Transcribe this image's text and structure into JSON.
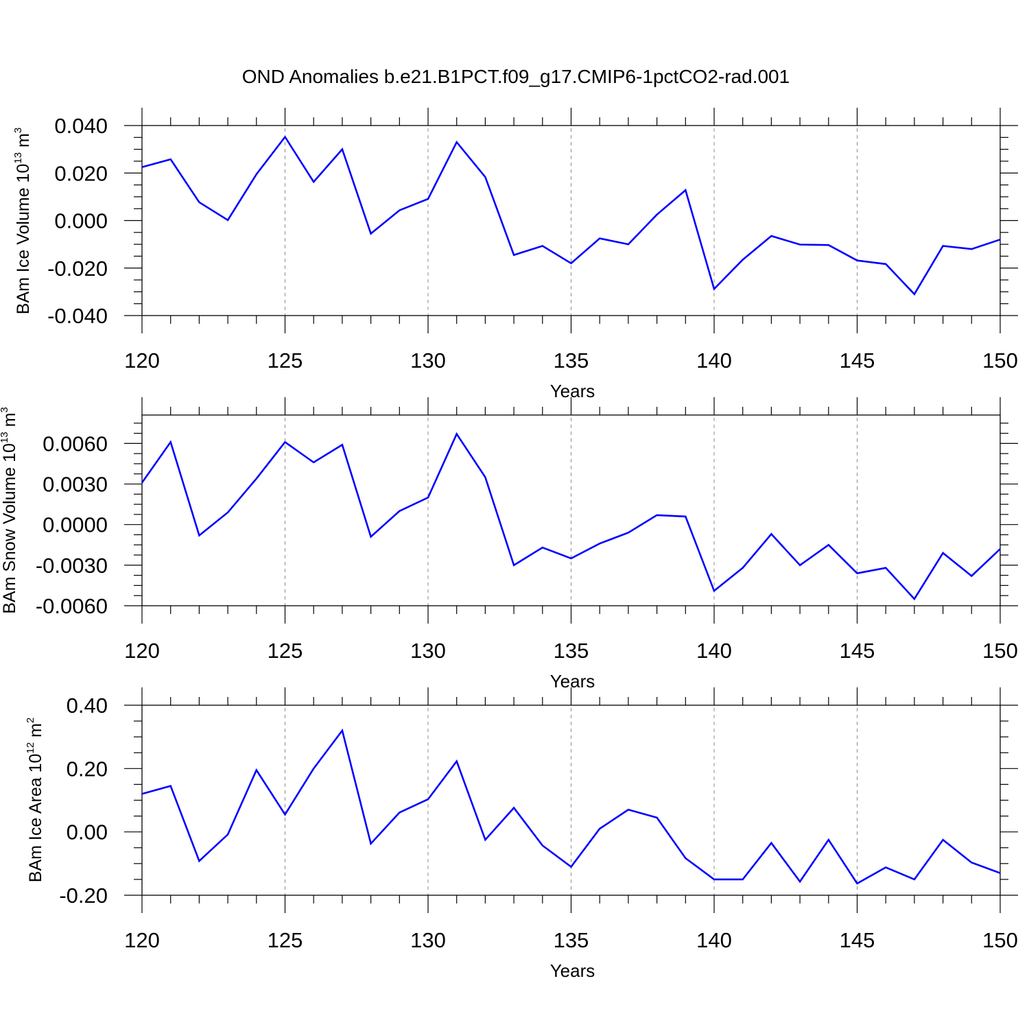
{
  "title": "OND Anomalies b.e21.B1PCT.f09_g17.CMIP6-1pctCO2-rad.001",
  "chart_data": [
    {
      "type": "line",
      "ylabel": "BAm Ice Volume 10",
      "ylabel_exp": "13",
      "ylabel_unit": " m",
      "ylabel_unit_exp": "3",
      "xlabel": "Years",
      "xlim": [
        120,
        150
      ],
      "ylim": [
        -0.04,
        0.04
      ],
      "x_ticks": [
        "120",
        "125",
        "130",
        "135",
        "140",
        "145",
        "150"
      ],
      "y_ticks": [
        {
          "value": 0.04,
          "label": "0.040"
        },
        {
          "value": 0.02,
          "label": "0.020"
        },
        {
          "value": 0.0,
          "label": "0.000"
        },
        {
          "value": -0.02,
          "label": "-0.020"
        },
        {
          "value": -0.04,
          "label": "-0.040"
        }
      ],
      "grid": "vertical dashed at major x ticks",
      "color": "#0000ff",
      "x": [
        120,
        121,
        122,
        123,
        124,
        125,
        126,
        127,
        128,
        129,
        130,
        131,
        132,
        133,
        134,
        135,
        136,
        137,
        138,
        139,
        140,
        141,
        142,
        143,
        144,
        145,
        146,
        147,
        148,
        149,
        150
      ],
      "values": [
        0.0225,
        0.0258,
        0.0077,
        0.0002,
        0.0195,
        0.0352,
        0.0163,
        0.03,
        -0.0055,
        0.0043,
        0.0091,
        0.033,
        0.0183,
        -0.0145,
        -0.0107,
        -0.018,
        -0.0075,
        -0.01,
        0.0025,
        0.0128,
        -0.0288,
        -0.0165,
        -0.0065,
        -0.0101,
        -0.0103,
        -0.0168,
        -0.0183,
        -0.031,
        -0.0107,
        -0.012,
        -0.008
      ]
    },
    {
      "type": "line",
      "ylabel": "BAm Snow Volume 10",
      "ylabel_exp": "13",
      "ylabel_unit": " m",
      "ylabel_unit_exp": "3",
      "xlabel": "Years",
      "xlim": [
        120,
        150
      ],
      "ylim": [
        -0.006,
        0.0081
      ],
      "x_ticks": [
        "120",
        "125",
        "130",
        "135",
        "140",
        "145",
        "150"
      ],
      "y_ticks": [
        {
          "value": 0.006,
          "label": "0.0060"
        },
        {
          "value": 0.003,
          "label": "0.0030"
        },
        {
          "value": 0.0,
          "label": "0.0000"
        },
        {
          "value": -0.003,
          "label": "-0.0030"
        },
        {
          "value": -0.006,
          "label": "-0.0060"
        }
      ],
      "grid": "vertical dashed at major x ticks",
      "color": "#0000ff",
      "x": [
        120,
        121,
        122,
        123,
        124,
        125,
        126,
        127,
        128,
        129,
        130,
        131,
        132,
        133,
        134,
        135,
        136,
        137,
        138,
        139,
        140,
        141,
        142,
        143,
        144,
        145,
        146,
        147,
        148,
        149,
        150
      ],
      "values": [
        0.0031,
        0.0061,
        -0.0008,
        0.0009,
        0.0034,
        0.0061,
        0.0046,
        0.0059,
        -0.0009,
        0.001,
        0.002,
        0.0067,
        0.0035,
        -0.003,
        -0.0017,
        -0.0025,
        -0.0014,
        -0.0006,
        0.0007,
        0.0006,
        -0.0049,
        -0.0032,
        -0.0007,
        -0.003,
        -0.0015,
        -0.0036,
        -0.0032,
        -0.0055,
        -0.0021,
        -0.0038,
        -0.0018
      ]
    },
    {
      "type": "line",
      "ylabel": "BAm Ice Area 10",
      "ylabel_exp": "12",
      "ylabel_unit": " m",
      "ylabel_unit_exp": "2",
      "xlabel": "Years",
      "xlim": [
        120,
        150
      ],
      "ylim": [
        -0.2,
        0.4
      ],
      "x_ticks": [
        "120",
        "125",
        "130",
        "135",
        "140",
        "145",
        "150"
      ],
      "y_ticks": [
        {
          "value": 0.4,
          "label": "0.40"
        },
        {
          "value": 0.2,
          "label": "0.20"
        },
        {
          "value": 0.0,
          "label": "0.00"
        },
        {
          "value": -0.2,
          "label": "-0.20"
        }
      ],
      "grid": "vertical dashed at major x ticks",
      "color": "#0000ff",
      "x": [
        120,
        121,
        122,
        123,
        124,
        125,
        126,
        127,
        128,
        129,
        130,
        131,
        132,
        133,
        134,
        135,
        136,
        137,
        138,
        139,
        140,
        141,
        142,
        143,
        144,
        145,
        146,
        147,
        148,
        149,
        150
      ],
      "values": [
        0.12,
        0.145,
        -0.092,
        -0.008,
        0.195,
        0.055,
        0.2,
        0.32,
        -0.037,
        0.061,
        0.103,
        0.223,
        -0.025,
        0.076,
        -0.043,
        -0.11,
        0.01,
        0.07,
        0.045,
        -0.083,
        -0.15,
        -0.15,
        -0.035,
        -0.157,
        -0.025,
        -0.163,
        -0.112,
        -0.15,
        -0.025,
        -0.097,
        -0.13
      ]
    }
  ]
}
